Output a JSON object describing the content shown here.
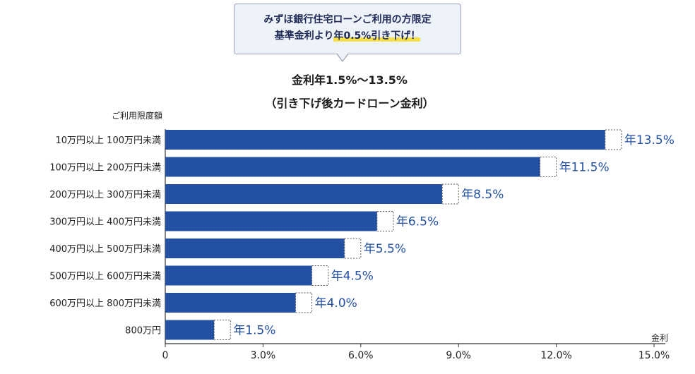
{
  "callout": {
    "line1": "みずほ銀行住宅ローンご利用の方限定",
    "line2_pre": "基準金利より",
    "line2_highlight": "年0.5%引き下げ！"
  },
  "title": {
    "line1": "金利年1.5%〜13.5%",
    "line2": "（引き下げ後カードローン金利）"
  },
  "colors": {
    "bar": "#2350a3",
    "label": "#2350a3",
    "dash": "#555555"
  },
  "chart_data": {
    "type": "bar",
    "orientation": "horizontal",
    "ylabel": "ご利用限度額",
    "xlabel": "金利",
    "xlim": [
      0,
      15.0
    ],
    "xticks": [
      "0",
      "3.0%",
      "6.0%",
      "9.0%",
      "12.0%",
      "15.0%"
    ],
    "xtick_values": [
      0,
      3,
      6,
      9,
      12,
      15
    ],
    "reduction": 0.5,
    "categories": [
      "10万円以上 100万円未満",
      "100万円以上 200万円未満",
      "200万円以上 300万円未満",
      "300万円以上 400万円未満",
      "400万円以上 500万円未満",
      "500万円以上 600万円未満",
      "600万円以上 800万円未満",
      "800万円"
    ],
    "values": [
      13.5,
      11.5,
      8.5,
      6.5,
      5.5,
      4.5,
      4.0,
      1.5
    ],
    "value_labels": [
      "年13.5%",
      "年11.5%",
      "年8.5%",
      "年6.5%",
      "年5.5%",
      "年4.5%",
      "年4.0%",
      "年1.5%"
    ]
  }
}
